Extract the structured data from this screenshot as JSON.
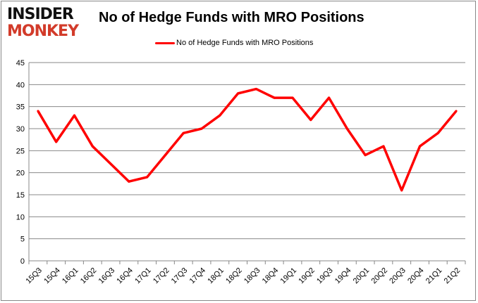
{
  "logo": {
    "line1": "INSIDER",
    "line2": "MONKEY"
  },
  "chart_data": {
    "type": "line",
    "title": "No of Hedge Funds with MRO Positions",
    "xlabel": "",
    "ylabel": "",
    "categories": [
      "15Q3",
      "15Q4",
      "16Q1",
      "16Q2",
      "16Q3",
      "16Q4",
      "17Q1",
      "17Q2",
      "17Q3",
      "17Q4",
      "18Q1",
      "18Q2",
      "18Q3",
      "18Q4",
      "19Q1",
      "19Q2",
      "19Q3",
      "19Q4",
      "20Q1",
      "20Q2",
      "20Q3",
      "20Q4",
      "21Q1",
      "21Q2"
    ],
    "series": [
      {
        "name": "No of Hedge Funds with MRO Positions",
        "color": "#ff0000",
        "values": [
          34,
          27,
          33,
          26,
          22,
          18,
          19,
          24,
          29,
          30,
          33,
          38,
          39,
          37,
          37,
          32,
          37,
          30,
          24,
          26,
          16,
          26,
          29,
          34
        ]
      }
    ],
    "ylim": [
      0,
      45
    ],
    "yticks": [
      0,
      5,
      10,
      15,
      20,
      25,
      30,
      35,
      40,
      45
    ],
    "grid": true,
    "legend": "top-center"
  }
}
